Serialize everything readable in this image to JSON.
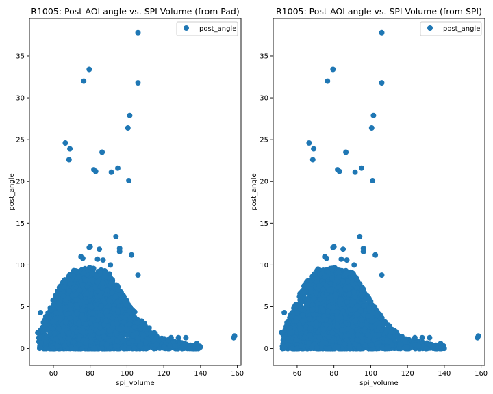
{
  "chart_data": [
    {
      "type": "scatter",
      "title": "R1005: Post-AOI angle vs. SPI Volume (from Pad)",
      "xlabel": "spi_volume",
      "ylabel": "post_angle",
      "xlim": [
        47,
        162
      ],
      "ylim": [
        -2,
        39.5
      ],
      "xticks": [
        "60",
        "80",
        "100",
        "120",
        "140",
        "160"
      ],
      "yticks": [
        "0",
        "5",
        "10",
        "15",
        "20",
        "25",
        "30",
        "35"
      ],
      "legend": {
        "position": "top-right",
        "entries": [
          "post_angle"
        ]
      },
      "series": [
        {
          "name": "post_angle",
          "color": "#1f77b4",
          "outliers": [
            [
              106,
              37.8
            ],
            [
              79.5,
              33.4
            ],
            [
              76.5,
              32.0
            ],
            [
              106,
              31.8
            ],
            [
              101.5,
              27.9
            ],
            [
              100.5,
              26.4
            ],
            [
              66.5,
              24.6
            ],
            [
              69,
              23.9
            ],
            [
              86.5,
              23.5
            ],
            [
              68.5,
              22.6
            ],
            [
              95,
              21.6
            ],
            [
              82,
              21.4
            ],
            [
              83,
              21.2
            ],
            [
              91.5,
              21.1
            ],
            [
              101,
              20.1
            ],
            [
              94,
              13.4
            ],
            [
              79.5,
              12.1
            ],
            [
              80,
              12.2
            ],
            [
              96,
              12.0
            ],
            [
              85,
              11.9
            ],
            [
              96,
              11.6
            ],
            [
              102.5,
              11.2
            ],
            [
              75,
              11.0
            ],
            [
              76,
              10.8
            ],
            [
              84,
              10.7
            ],
            [
              87,
              10.6
            ],
            [
              91,
              10.0
            ],
            [
              106,
              8.8
            ],
            [
              53,
              4.3
            ],
            [
              51.5,
              1.9
            ],
            [
              53,
              1.3
            ],
            [
              55,
              1.2
            ],
            [
              53,
              0.1
            ],
            [
              60,
              0.0
            ],
            [
              62,
              0.3
            ],
            [
              132,
              1.3
            ],
            [
              128,
              1.3
            ],
            [
              124,
              1.3
            ],
            [
              134,
              0.1
            ],
            [
              130,
              0.0
            ],
            [
              138,
              0.6
            ],
            [
              138.5,
              0.1
            ],
            [
              126,
              0.3
            ],
            [
              120,
              0.2
            ],
            [
              116,
              0.5
            ],
            [
              158,
              1.3
            ],
            [
              158.5,
              1.5
            ]
          ]
        }
      ]
    },
    {
      "type": "scatter",
      "title": "R1005: Post-AOI angle vs. SPI Volume (from SPI)",
      "xlabel": "spi_volume",
      "ylabel": "post_angle",
      "xlim": [
        47,
        162
      ],
      "ylim": [
        -2,
        39.5
      ],
      "xticks": [
        "60",
        "80",
        "100",
        "120",
        "140",
        "160"
      ],
      "yticks": [
        "0",
        "5",
        "10",
        "15",
        "20",
        "25",
        "30",
        "35"
      ],
      "legend": {
        "position": "top-right",
        "entries": [
          "post_angle"
        ]
      },
      "series": [
        {
          "name": "post_angle",
          "color": "#1f77b4",
          "outliers": [
            [
              106,
              37.8
            ],
            [
              79.5,
              33.4
            ],
            [
              76.5,
              32.0
            ],
            [
              106,
              31.8
            ],
            [
              101.5,
              27.9
            ],
            [
              100.5,
              26.4
            ],
            [
              66.5,
              24.6
            ],
            [
              69,
              23.9
            ],
            [
              86.5,
              23.5
            ],
            [
              68.5,
              22.6
            ],
            [
              95,
              21.6
            ],
            [
              82,
              21.4
            ],
            [
              83,
              21.2
            ],
            [
              91.5,
              21.1
            ],
            [
              101,
              20.1
            ],
            [
              94,
              13.4
            ],
            [
              79.5,
              12.1
            ],
            [
              80,
              12.2
            ],
            [
              96,
              12.0
            ],
            [
              85,
              11.9
            ],
            [
              96,
              11.6
            ],
            [
              102.5,
              11.2
            ],
            [
              75,
              11.0
            ],
            [
              76,
              10.8
            ],
            [
              84,
              10.7
            ],
            [
              87,
              10.6
            ],
            [
              91,
              10.0
            ],
            [
              106,
              8.8
            ],
            [
              53,
              4.3
            ],
            [
              51.5,
              1.9
            ],
            [
              53,
              1.3
            ],
            [
              55,
              1.2
            ],
            [
              53,
              0.1
            ],
            [
              60,
              0.0
            ],
            [
              62,
              0.3
            ],
            [
              132,
              1.3
            ],
            [
              128,
              1.3
            ],
            [
              124,
              1.3
            ],
            [
              134,
              0.1
            ],
            [
              130,
              0.0
            ],
            [
              138,
              0.6
            ],
            [
              138.5,
              0.1
            ],
            [
              126,
              0.3
            ],
            [
              120,
              0.2
            ],
            [
              116,
              0.5
            ],
            [
              158,
              1.3
            ],
            [
              158.5,
              1.5
            ]
          ]
        }
      ]
    }
  ]
}
